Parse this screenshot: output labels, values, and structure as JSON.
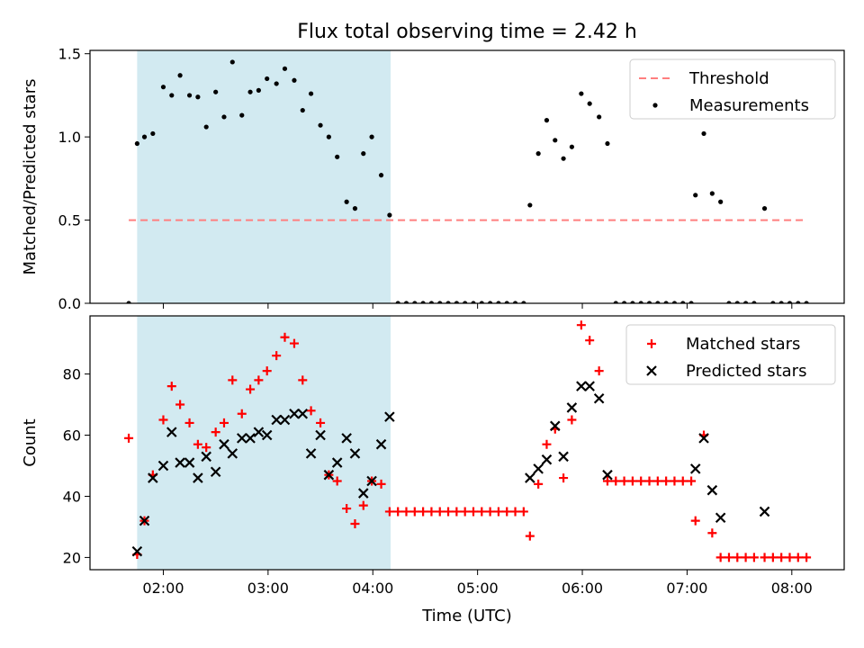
{
  "chart_data": {
    "title": "Flux total observing time = 2.42 h",
    "xlabel": "Time (UTC)",
    "x_unit": "hours UTC",
    "xlim": [
      1.3,
      8.5
    ],
    "xticks": [
      {
        "value": 2,
        "label": "02:00"
      },
      {
        "value": 3,
        "label": "03:00"
      },
      {
        "value": 4,
        "label": "04:00"
      },
      {
        "value": 5,
        "label": "05:00"
      },
      {
        "value": 6,
        "label": "06:00"
      },
      {
        "value": 7,
        "label": "07:00"
      },
      {
        "value": 8,
        "label": "08:00"
      }
    ],
    "shaded_span": {
      "x_start": 1.75,
      "x_end": 4.17,
      "color": "#add8e6"
    },
    "panels": [
      {
        "type": "scatter",
        "ylabel": "Matched/Predicted stars",
        "ylim": [
          0,
          1.52
        ],
        "yticks": [
          0.0,
          0.5,
          1.0,
          1.5
        ],
        "ytick_labels": [
          "0.0",
          "0.5",
          "1.0",
          "1.5"
        ],
        "legend_position": "top-right",
        "series": [
          {
            "name": "Threshold",
            "kind": "dashed-line",
            "color": "#ff7f7f",
            "x": [
              1.67,
              8.12
            ],
            "y": [
              0.5,
              0.5
            ]
          },
          {
            "name": "Measurements",
            "kind": "dot",
            "color": "#000000",
            "x": [
              1.67,
              1.75,
              1.82,
              1.9,
              2.0,
              2.08,
              2.16,
              2.25,
              2.33,
              2.41,
              2.5,
              2.58,
              2.66,
              2.75,
              2.83,
              2.91,
              2.99,
              3.08,
              3.16,
              3.25,
              3.33,
              3.41,
              3.5,
              3.58,
              3.66,
              3.75,
              3.83,
              3.91,
              3.99,
              4.08,
              4.16,
              4.24,
              4.32,
              4.4,
              4.48,
              4.56,
              4.64,
              4.72,
              4.8,
              4.88,
              4.96,
              5.04,
              5.12,
              5.2,
              5.28,
              5.36,
              5.44,
              5.5,
              5.58,
              5.66,
              5.74,
              5.82,
              5.9,
              5.99,
              6.07,
              6.16,
              6.24,
              6.32,
              6.4,
              6.48,
              6.56,
              6.64,
              6.72,
              6.8,
              6.88,
              6.96,
              7.04,
              7.08,
              7.16,
              7.24,
              7.32,
              7.4,
              7.48,
              7.56,
              7.64,
              7.74,
              7.82,
              7.9,
              7.98,
              8.06,
              8.14
            ],
            "y": [
              0.0,
              0.96,
              1.0,
              1.02,
              1.3,
              1.25,
              1.37,
              1.25,
              1.24,
              1.06,
              1.27,
              1.12,
              1.45,
              1.13,
              1.27,
              1.28,
              1.35,
              1.32,
              1.41,
              1.34,
              1.16,
              1.26,
              1.07,
              1.0,
              0.88,
              0.61,
              0.57,
              0.9,
              1.0,
              0.77,
              0.53,
              0.0,
              0.0,
              0.0,
              0.0,
              0.0,
              0.0,
              0.0,
              0.0,
              0.0,
              0.0,
              0.0,
              0.0,
              0.0,
              0.0,
              0.0,
              0.0,
              0.59,
              0.9,
              1.1,
              0.98,
              0.87,
              0.94,
              1.26,
              1.2,
              1.12,
              0.96,
              0.0,
              0.0,
              0.0,
              0.0,
              0.0,
              0.0,
              0.0,
              0.0,
              0.0,
              0.0,
              0.65,
              1.02,
              0.66,
              0.61,
              0.0,
              0.0,
              0.0,
              0.0,
              0.57,
              0.0,
              0.0,
              0.0,
              0.0,
              0.0
            ]
          }
        ]
      },
      {
        "type": "scatter",
        "ylabel": "Count",
        "ylim": [
          16,
          99
        ],
        "yticks": [
          20,
          40,
          60,
          80
        ],
        "ytick_labels": [
          "20",
          "40",
          "60",
          "80"
        ],
        "legend_position": "top-right",
        "series": [
          {
            "name": "Matched stars",
            "kind": "plus",
            "color": "#ff0000",
            "x": [
              1.67,
              1.75,
              1.82,
              1.9,
              2.0,
              2.08,
              2.16,
              2.25,
              2.33,
              2.41,
              2.5,
              2.58,
              2.66,
              2.75,
              2.83,
              2.91,
              2.99,
              3.08,
              3.16,
              3.25,
              3.33,
              3.41,
              3.5,
              3.58,
              3.66,
              3.75,
              3.83,
              3.91,
              3.99,
              4.08,
              4.16,
              4.24,
              4.32,
              4.4,
              4.48,
              4.56,
              4.64,
              4.72,
              4.8,
              4.88,
              4.96,
              5.04,
              5.12,
              5.2,
              5.28,
              5.36,
              5.44,
              5.5,
              5.58,
              5.66,
              5.74,
              5.82,
              5.9,
              5.99,
              6.07,
              6.16,
              6.24,
              6.32,
              6.4,
              6.48,
              6.56,
              6.64,
              6.72,
              6.8,
              6.88,
              6.96,
              7.04,
              7.08,
              7.16,
              7.24,
              7.32,
              7.4,
              7.48,
              7.56,
              7.64,
              7.74,
              7.82,
              7.9,
              7.98,
              8.06,
              8.14
            ],
            "y": [
              59,
              21,
              32,
              47,
              65,
              76,
              70,
              64,
              57,
              56,
              61,
              64,
              78,
              67,
              75,
              78,
              81,
              86,
              92,
              90,
              78,
              68,
              64,
              47,
              45,
              36,
              31,
              37,
              45,
              44,
              35,
              35,
              35,
              35,
              35,
              35,
              35,
              35,
              35,
              35,
              35,
              35,
              35,
              35,
              35,
              35,
              35,
              27,
              44,
              57,
              62,
              46,
              65,
              96,
              91,
              81,
              45,
              45,
              45,
              45,
              45,
              45,
              45,
              45,
              45,
              45,
              45,
              32,
              60,
              28,
              20,
              20,
              20,
              20,
              20,
              20,
              20,
              20,
              20,
              20,
              20
            ]
          },
          {
            "name": "Predicted stars",
            "kind": "x",
            "color": "#000000",
            "x": [
              1.75,
              1.82,
              1.9,
              2.0,
              2.08,
              2.16,
              2.25,
              2.33,
              2.41,
              2.5,
              2.58,
              2.66,
              2.75,
              2.83,
              2.91,
              2.99,
              3.08,
              3.16,
              3.25,
              3.33,
              3.41,
              3.5,
              3.58,
              3.66,
              3.75,
              3.83,
              3.91,
              3.99,
              4.08,
              4.16,
              5.5,
              5.58,
              5.66,
              5.74,
              5.82,
              5.9,
              5.99,
              6.07,
              6.16,
              6.24,
              7.08,
              7.16,
              7.24,
              7.32,
              7.74
            ],
            "y": [
              22,
              32,
              46,
              50,
              61,
              51,
              51,
              46,
              53,
              48,
              57,
              54,
              59,
              59,
              61,
              60,
              65,
              65,
              67,
              67,
              54,
              60,
              47,
              51,
              59,
              54,
              41,
              45,
              57,
              66,
              46,
              49,
              52,
              63,
              53,
              69,
              76,
              76,
              72,
              47,
              49,
              59,
              42,
              33,
              35
            ]
          }
        ]
      }
    ]
  }
}
